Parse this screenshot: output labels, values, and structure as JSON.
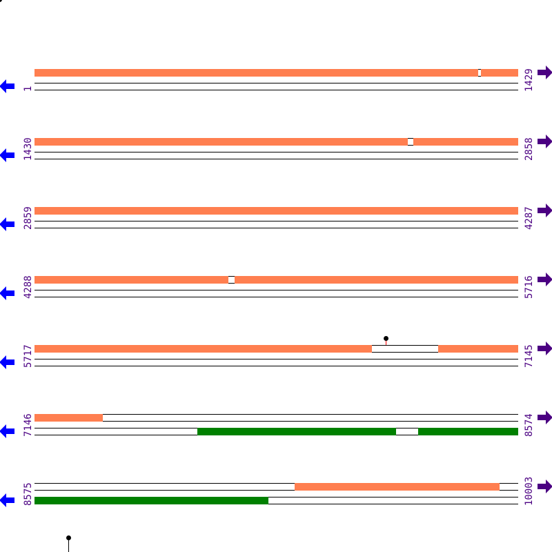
{
  "colors": {
    "forward": "#ff7f50",
    "reverse": "#008000",
    "label": "#4b0082",
    "left_arrow": "#0000ff",
    "right_arrow": "#4b0082",
    "marker_stem": "#ff0000"
  },
  "icons": {
    "left": "arrow-left-icon",
    "right": "arrow-right-icon",
    "marker": "lollipop-marker-icon"
  },
  "rows": [
    {
      "start": "1",
      "end": "1429",
      "s": 1,
      "e": 1429,
      "track1": [
        [
          1,
          1311
        ],
        [
          1320,
          1429
        ]
      ],
      "track2": [],
      "markers": []
    },
    {
      "start": "1430",
      "end": "2858",
      "s": 1430,
      "e": 2858,
      "track1": [
        [
          1430,
          2532
        ],
        [
          2549,
          2858
        ]
      ],
      "track2": [],
      "markers": []
    },
    {
      "start": "2859",
      "end": "4287",
      "s": 2859,
      "e": 4287,
      "track1": [
        [
          2859,
          4287
        ]
      ],
      "track2": [],
      "markers": []
    },
    {
      "start": "4288",
      "end": "5716",
      "s": 4288,
      "e": 5716,
      "track1": [
        [
          4288,
          4860
        ],
        [
          4879,
          5716
        ]
      ],
      "track2": [],
      "markers": []
    },
    {
      "start": "5717",
      "end": "7145",
      "s": 5717,
      "e": 7145,
      "track1": [
        [
          5717,
          6713
        ],
        [
          6910,
          7145
        ]
      ],
      "track2": [],
      "markers": [
        6755
      ]
    },
    {
      "start": "7146",
      "end": "8574",
      "s": 7146,
      "e": 8574,
      "track1": [
        [
          7146,
          7347
        ]
      ],
      "track2": [
        [
          7627,
          8214
        ],
        [
          8279,
          8574
        ]
      ],
      "markers": []
    },
    {
      "start": "8575",
      "end": "10003",
      "s": 8575,
      "e": 10003,
      "track1": [
        [
          9343,
          9949
        ]
      ],
      "track2": [
        [
          8575,
          9266
        ]
      ],
      "markers": []
    }
  ]
}
